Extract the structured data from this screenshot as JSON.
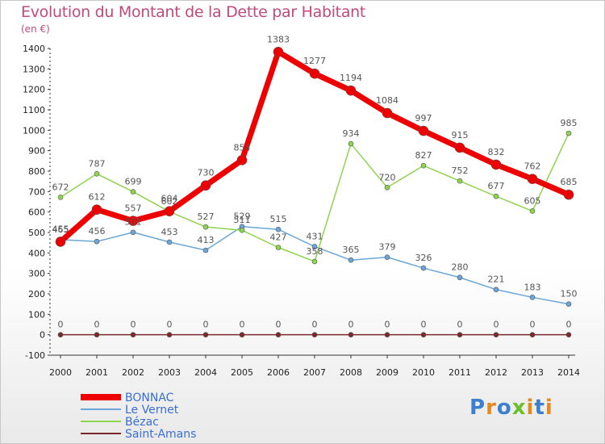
{
  "chart_data": {
    "type": "line",
    "title": "Evolution du Montant de la Dette par Habitant",
    "unit": "(en €)",
    "x": [
      "2000",
      "2001",
      "2002",
      "2003",
      "2004",
      "2005",
      "2006",
      "2007",
      "2008",
      "2009",
      "2010",
      "2011",
      "2012",
      "2013",
      "2014"
    ],
    "ylim": [
      -100,
      1400
    ],
    "yticks": [
      -100,
      0,
      100,
      200,
      300,
      400,
      500,
      600,
      700,
      800,
      900,
      1000,
      1100,
      1200,
      1300,
      1400
    ],
    "grid": false,
    "legend_position": "bottom-left",
    "series": [
      {
        "name": "BONNAC",
        "color": "#ee0000",
        "values": [
          455,
          612,
          557,
          604,
          730,
          854,
          1383,
          1277,
          1194,
          1084,
          997,
          915,
          832,
          762,
          685
        ]
      },
      {
        "name": "Le Vernet",
        "color": "#6ba6d8",
        "values": [
          465,
          456,
          501,
          453,
          413,
          529,
          515,
          431,
          365,
          379,
          326,
          280,
          221,
          183,
          150
        ]
      },
      {
        "name": "Bézac",
        "color": "#8ed44f",
        "values": [
          672,
          787,
          699,
          602,
          527,
          511,
          427,
          358,
          934,
          720,
          827,
          752,
          677,
          605,
          985
        ]
      },
      {
        "name": "Saint-Amans",
        "color": "#7a2a2a",
        "values": [
          0,
          0,
          0,
          0,
          0,
          0,
          0,
          0,
          0,
          0,
          0,
          0,
          0,
          0,
          0
        ]
      }
    ]
  },
  "logo": {
    "letters": [
      "P",
      "r",
      "o",
      "x",
      "i",
      "t",
      "i"
    ],
    "colors": [
      "#3a7fd0",
      "#e58a1f",
      "#3a7fd0",
      "#6bbf2a",
      "#e58a1f",
      "#3a7fd0",
      "#e58a1f"
    ]
  }
}
